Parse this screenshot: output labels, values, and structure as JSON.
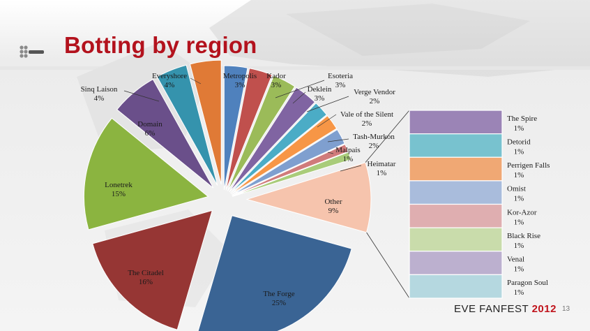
{
  "slide": {
    "title": "Botting by region",
    "brand_prefix": "EVE FANFEST",
    "brand_year": "2012",
    "slide_number": "13",
    "accent_color": "#b3121d"
  },
  "chart_data": {
    "type": "pie",
    "title": "Botting by region",
    "unit": "%",
    "slices": [
      {
        "name": "Metropolis",
        "value": 3,
        "label": "3%",
        "color": "#4f81bd"
      },
      {
        "name": "Kador",
        "value": 3,
        "label": "3%",
        "color": "#c0504d"
      },
      {
        "name": "Esoteria",
        "value": 3,
        "label": "3%",
        "color": "#9bbb59"
      },
      {
        "name": "Deklein",
        "value": 3,
        "label": "3%",
        "color": "#8064a2"
      },
      {
        "name": "Verge Vendor",
        "value": 2,
        "label": "2%",
        "color": "#4bacc6"
      },
      {
        "name": "Vale of the Silent",
        "value": 2,
        "label": "2%",
        "color": "#f79646"
      },
      {
        "name": "Tash-Murkon",
        "value": 2,
        "label": "2%",
        "color": "#7f9fcf"
      },
      {
        "name": "Malpais",
        "value": 1,
        "label": "1%",
        "color": "#d07b7b"
      },
      {
        "name": "Heimatar",
        "value": 1,
        "label": "1%",
        "color": "#a9cc7a"
      },
      {
        "name": "Other",
        "value": 9,
        "label": "9%",
        "color": "#f6c4ad"
      },
      {
        "name": "The Forge",
        "value": 25,
        "label": "25%",
        "color": "#3a6494"
      },
      {
        "name": "The Citadel",
        "value": 16,
        "label": "16%",
        "color": "#963634"
      },
      {
        "name": "Lonetrek",
        "value": 15,
        "label": "15%",
        "color": "#8bb440"
      },
      {
        "name": "Domain",
        "value": 6,
        "label": "6%",
        "color": "#6a4f8a"
      },
      {
        "name": "Sinq Laison",
        "value": 4,
        "label": "4%",
        "color": "#3593ad"
      },
      {
        "name": "Everyshore",
        "value": 4,
        "label": "4%",
        "color": "#e07a36"
      }
    ],
    "other_breakdown": [
      {
        "name": "The Spire",
        "value": 1,
        "label": "1%",
        "color": "#9b84b6"
      },
      {
        "name": "Detorid",
        "value": 1,
        "label": "1%",
        "color": "#78c2cf"
      },
      {
        "name": "Perrigen Falls",
        "value": 1,
        "label": "1%",
        "color": "#f0a874"
      },
      {
        "name": "Omist",
        "value": 1,
        "label": "1%",
        "color": "#a9bcdc"
      },
      {
        "name": "Kor-Azor",
        "value": 1,
        "label": "1%",
        "color": "#dfaeb0"
      },
      {
        "name": "Black Rise",
        "value": 1,
        "label": "1%",
        "color": "#c9dcab"
      },
      {
        "name": "Venal",
        "value": 1,
        "label": "1%",
        "color": "#bcb0cf"
      },
      {
        "name": "Paragon Soul",
        "value": 1,
        "label": "1%",
        "color": "#b5d8e0"
      }
    ]
  }
}
